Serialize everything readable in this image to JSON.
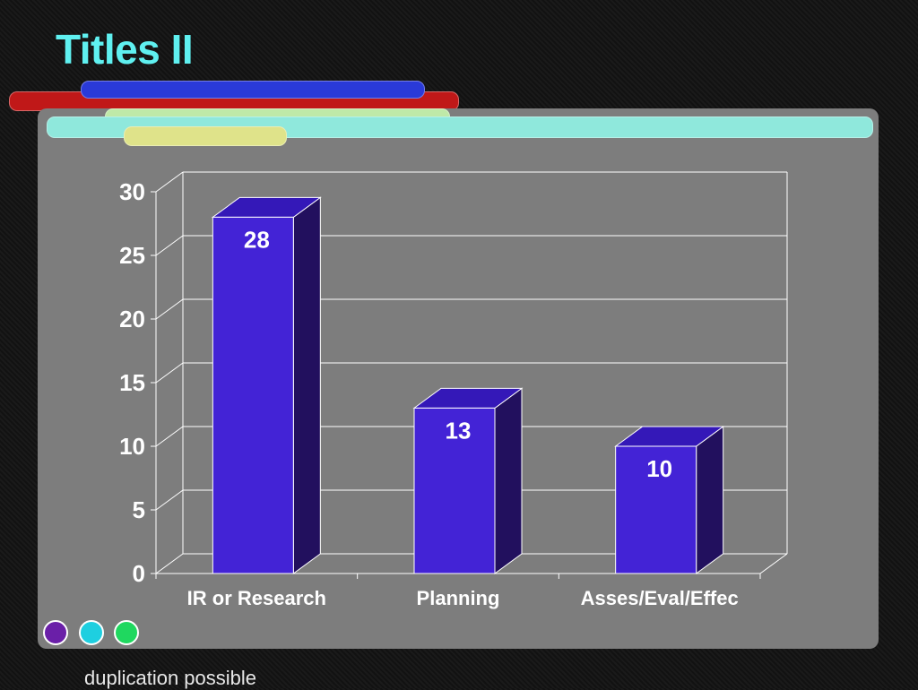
{
  "slide": {
    "title": "Titles II",
    "footnote": "duplication possible"
  },
  "colors": {
    "title": "#5ff0f0",
    "bar_front": "#4323d6",
    "bar_top": "#3418b8",
    "bar_side": "#22105e",
    "panel": "#7d7d7d"
  },
  "decor": {
    "pills": [
      "red",
      "blue",
      "green",
      "cyan",
      "yellow"
    ],
    "dots": [
      "purple",
      "cyan",
      "green"
    ]
  },
  "chart_data": {
    "type": "bar",
    "categories": [
      "IR or Research",
      "Planning",
      "Asses/Eval/Effec"
    ],
    "values": [
      28,
      13,
      10
    ],
    "data_labels": [
      "28",
      "13",
      "10"
    ],
    "title": "",
    "xlabel": "",
    "ylabel": "",
    "ylim": [
      0,
      30
    ],
    "yticks": [
      0,
      5,
      10,
      15,
      20,
      25,
      30
    ],
    "ytick_labels": [
      "0",
      "5",
      "10",
      "15",
      "20",
      "25",
      "30"
    ],
    "grid": true,
    "style": "3d-column"
  }
}
